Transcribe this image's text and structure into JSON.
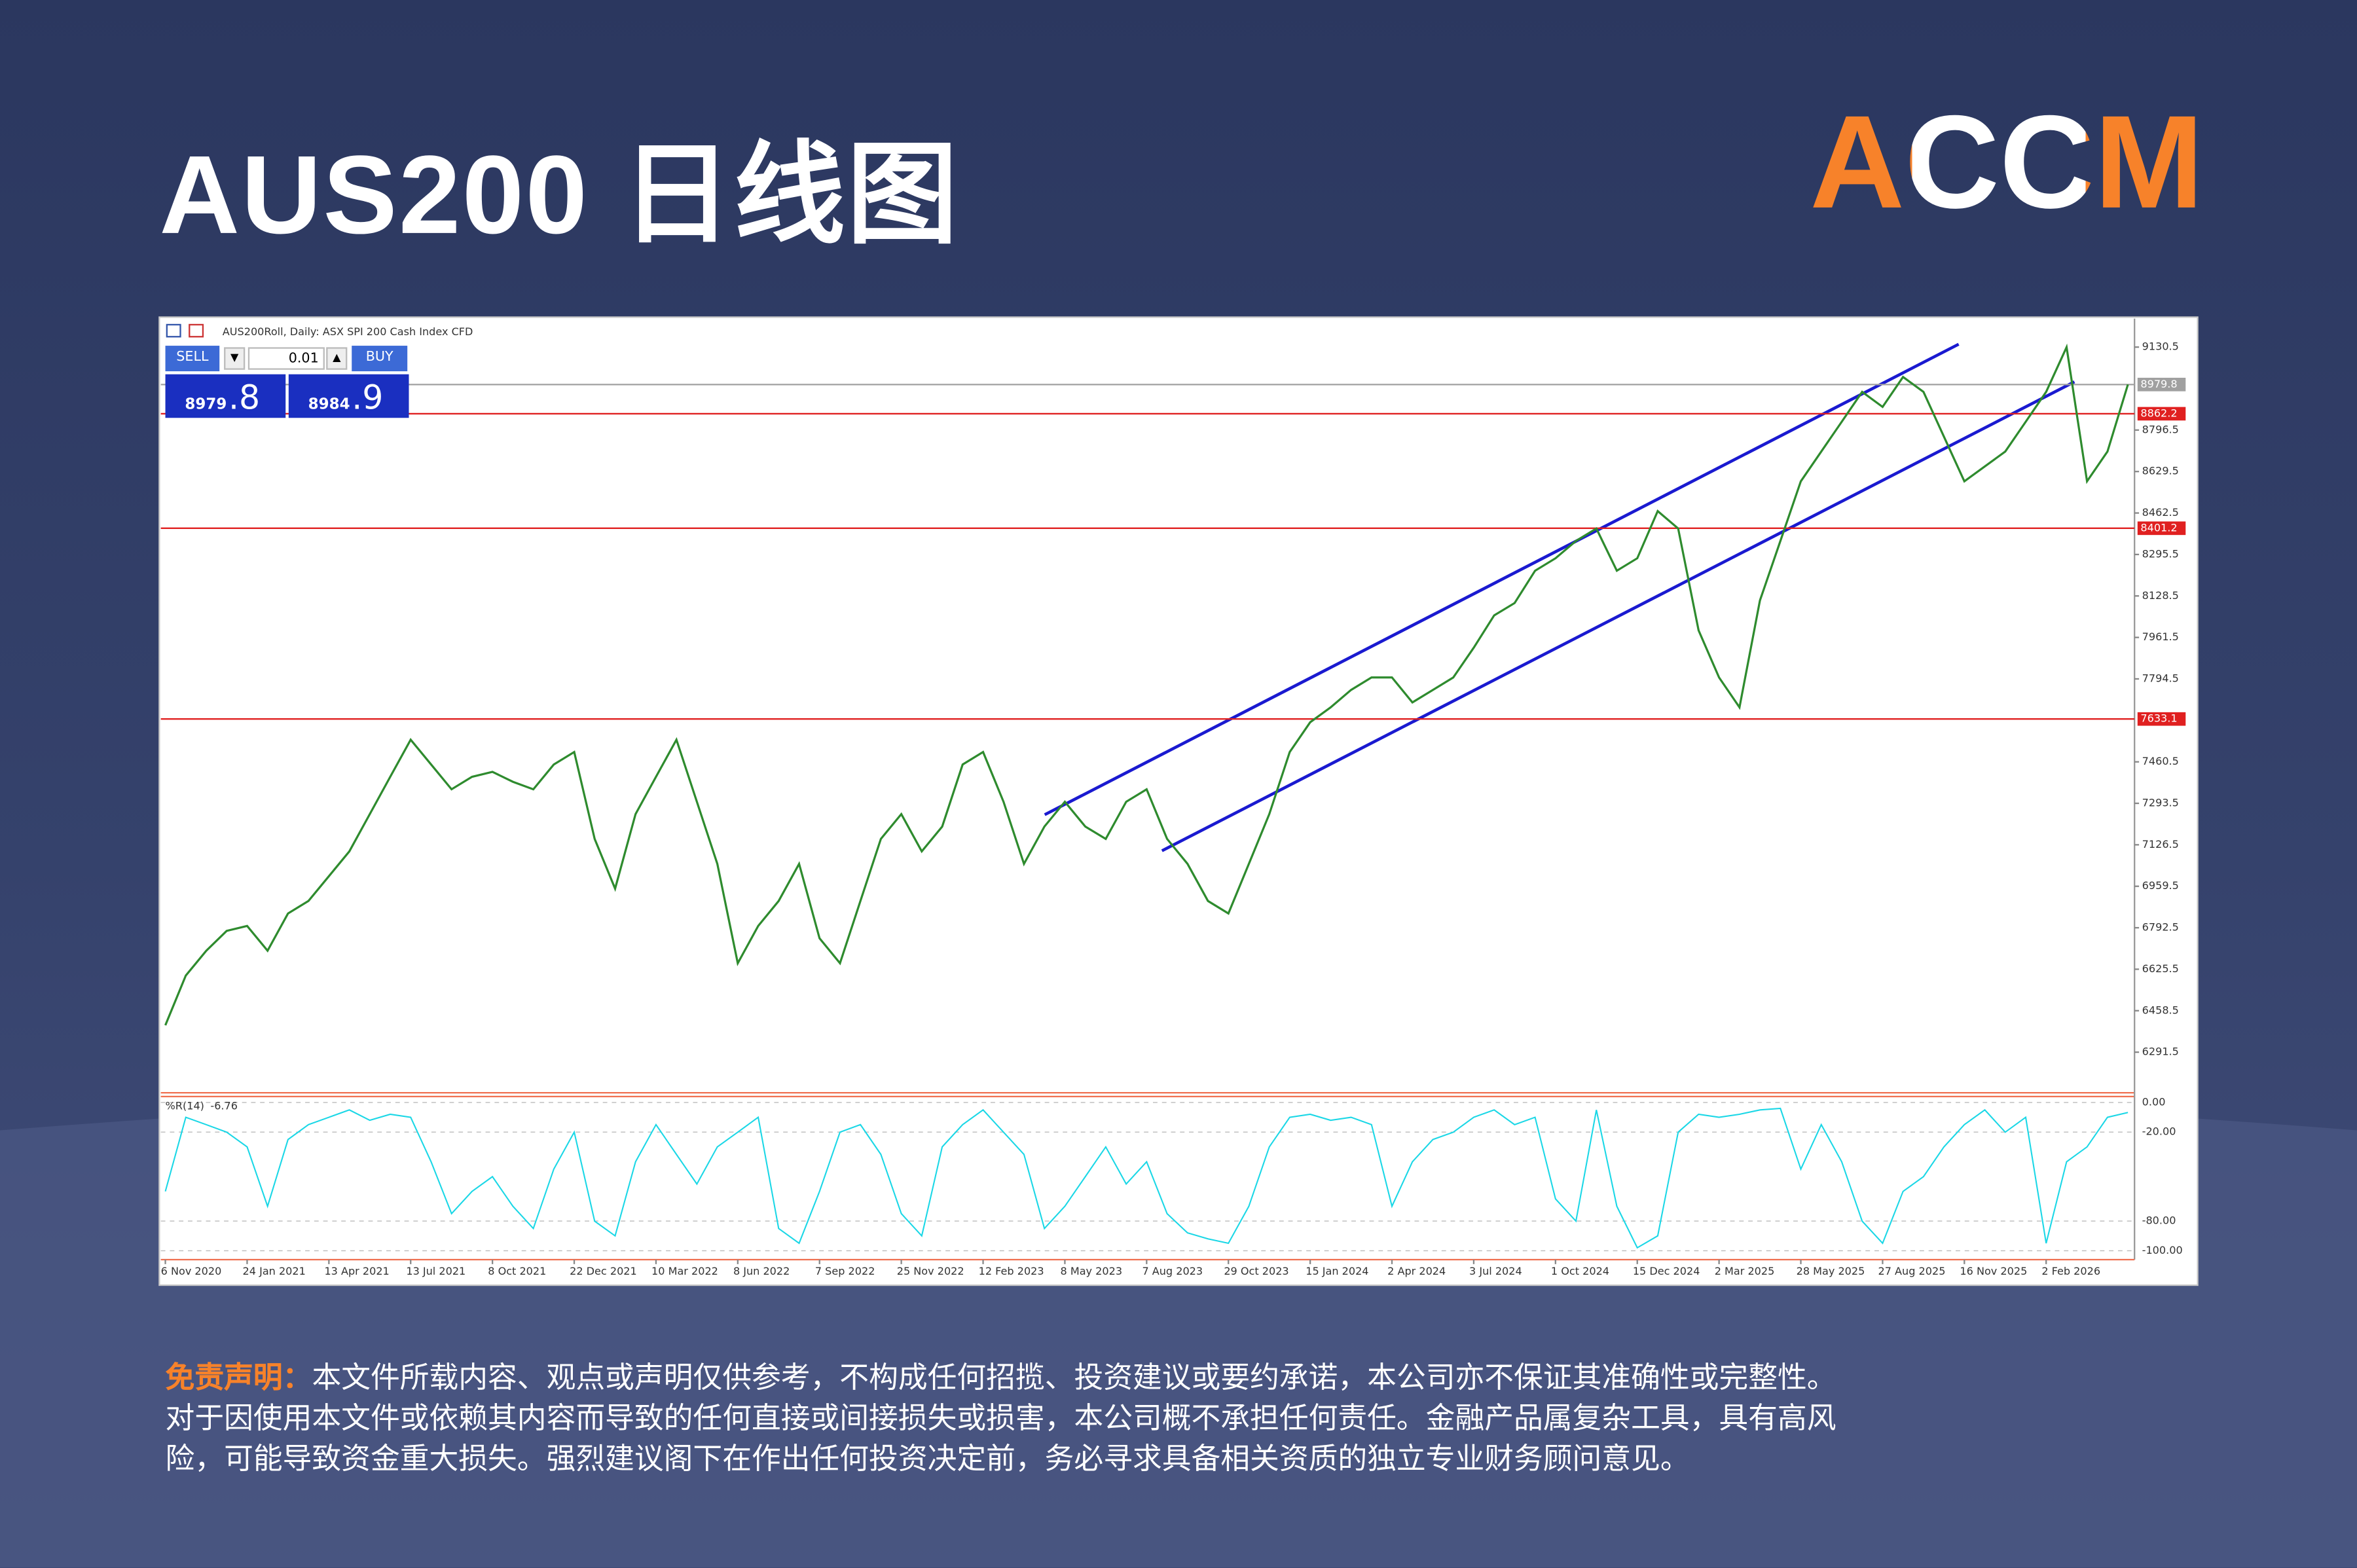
{
  "header": {
    "title": "AUS200 日线图",
    "logo": "ACCM"
  },
  "chart_data": {
    "type": "line",
    "title": "AUS200Roll, Daily: ASX SPI 200 Cash Index CFD",
    "trade_panel": {
      "sell_label": "SELL",
      "buy_label": "BUY",
      "volume": "0.01",
      "sell_price_int": "8979",
      "sell_price_frac": ".8",
      "buy_price_int": "8984",
      "buy_price_frac": ".9"
    },
    "categories": [
      "6 Nov 2020",
      null,
      null,
      null,
      "24 Jan 2021",
      null,
      null,
      null,
      "13 Apr 2021",
      null,
      null,
      null,
      "13 Jul 2021",
      null,
      null,
      null,
      "8 Oct 2021",
      null,
      null,
      null,
      "22 Dec 2021",
      null,
      null,
      null,
      "10 Mar 2022",
      null,
      null,
      null,
      "8 Jun 2022",
      null,
      null,
      null,
      "7 Sep 2022",
      null,
      null,
      null,
      "25 Nov 2022",
      null,
      null,
      null,
      "12 Feb 2023",
      null,
      null,
      null,
      "8 May 2023",
      null,
      null,
      null,
      "7 Aug 2023",
      null,
      null,
      null,
      "29 Oct 2023",
      null,
      null,
      null,
      "15 Jan 2024",
      null,
      null,
      null,
      "2 Apr 2024",
      null,
      null,
      null,
      "3 Jul 2024",
      null,
      null,
      null,
      "1 Oct 2024",
      null,
      null,
      null,
      "15 Dec 2024",
      null,
      null,
      null,
      "2 Mar 2025",
      null,
      null,
      null,
      "28 May 2025",
      null,
      null,
      null,
      "27 Aug 2025",
      null,
      null,
      null,
      "16 Nov 2025",
      null,
      null,
      null,
      "2 Feb 2026",
      null,
      null,
      null,
      null
    ],
    "series": [
      {
        "name": "AUS200Roll",
        "color": "#2e8b2e",
        "values": [
          6400,
          6600,
          6700,
          6780,
          6800,
          6700,
          6850,
          6900,
          7000,
          7100,
          7250,
          7400,
          7550,
          7450,
          7350,
          7400,
          7420,
          7380,
          7350,
          7450,
          7500,
          7150,
          6950,
          7250,
          7400,
          7550,
          7300,
          7050,
          6650,
          6800,
          6900,
          7050,
          6750,
          6650,
          6900,
          7150,
          7250,
          7100,
          7200,
          7450,
          7500,
          7300,
          7050,
          7200,
          7300,
          7200,
          7150,
          7300,
          7350,
          7150,
          7050,
          6900,
          6850,
          7050,
          7250,
          7500,
          7620,
          7680,
          7750,
          7800,
          7800,
          7700,
          7750,
          7800,
          7920,
          8050,
          8100,
          8230,
          8280,
          8350,
          8400,
          8230,
          8280,
          8470,
          8400,
          7990,
          7800,
          7680,
          8110,
          8350,
          8590,
          8710,
          8830,
          8950,
          8890,
          9010,
          8950,
          8770,
          8590,
          8650,
          8710,
          8830,
          8950,
          9130,
          8590,
          8710,
          8980
        ]
      }
    ],
    "ylim": [
      6128,
      9245
    ],
    "yticks": [
      6291.5,
      6458.5,
      6625.5,
      6792.5,
      6959.5,
      7126.5,
      7293.5,
      7460.5,
      7794.5,
      7961.5,
      8128.5,
      8295.5,
      8462.5,
      8629.5,
      8796.5,
      9130.5
    ],
    "levels": [
      {
        "value": 8979.8,
        "color": "#a0a0a0"
      },
      {
        "value": 8862.2,
        "color": "#e02020"
      },
      {
        "value": 8401.2,
        "color": "#e02020"
      },
      {
        "value": 7633.1,
        "color": "#e02020"
      }
    ],
    "indicator": {
      "name": "%R(14)",
      "value": -6.76,
      "color": "#1ad7e6",
      "values": [
        -60,
        -10,
        -15,
        -20,
        -30,
        -70,
        -25,
        -15,
        -10,
        -5,
        -12,
        -8,
        -10,
        -40,
        -75,
        -60,
        -50,
        -70,
        -85,
        -45,
        -20,
        -80,
        -90,
        -40,
        -15,
        -35,
        -55,
        -30,
        -20,
        -10,
        -85,
        -95,
        -60,
        -20,
        -15,
        -35,
        -75,
        -90,
        -30,
        -15,
        -5,
        -20,
        -35,
        -85,
        -70,
        -50,
        -30,
        -55,
        -40,
        -75,
        -88,
        -92,
        -95,
        -70,
        -30,
        -10,
        -8,
        -12,
        -10,
        -15,
        -70,
        -40,
        -25,
        -20,
        -10,
        -5,
        -15,
        -10,
        -65,
        -80,
        -5,
        -70,
        -98,
        -90,
        -20,
        -8,
        -10,
        -8,
        -5,
        -4,
        -45,
        -15,
        -40,
        -80,
        -95,
        -60,
        -50,
        -30,
        -15,
        -5,
        -20,
        -10,
        -95,
        -40,
        -30,
        -10,
        -6.76
      ],
      "ylim": [
        -106,
        4
      ],
      "yticks": [
        {
          "value": 0,
          "label": "0.00"
        },
        {
          "value": -20,
          "label": "-20.00"
        },
        {
          "value": -80,
          "label": "-80.00"
        },
        {
          "value": -100,
          "label": "-100.00"
        }
      ]
    }
  },
  "disclaimer": {
    "label": "免责声明：",
    "lines": [
      "本文件所载内容、观点或声明仅供参考，不构成任何招揽、投资建议或要约承诺，本公司亦不保证其准确性或完整性。",
      "对于因使用本文件或依赖其内容而导致的任何直接或间接损失或损害，本公司概不承担任何责任。金融产品属复杂工具，具有高风",
      "险，可能导致资金重大损失。强烈建议阁下在作出任何投资决定前，务必寻求具备相关资质的独立专业财务顾问意见。"
    ]
  }
}
